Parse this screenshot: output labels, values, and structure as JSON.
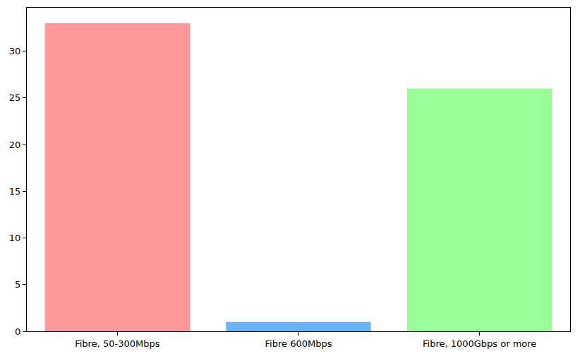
{
  "chart_data": {
    "type": "bar",
    "categories": [
      "Fibre, 50-300Mbps",
      "Fibre 600Mbps",
      "Fibre, 1000Gbps or more"
    ],
    "values": [
      33,
      1,
      26
    ],
    "colors": [
      "#ff9999",
      "#66b3ff",
      "#99ff99"
    ],
    "ylim": [
      0,
      34.65
    ],
    "yticks": [
      0,
      5,
      10,
      15,
      20,
      25,
      30
    ],
    "grid": false
  }
}
